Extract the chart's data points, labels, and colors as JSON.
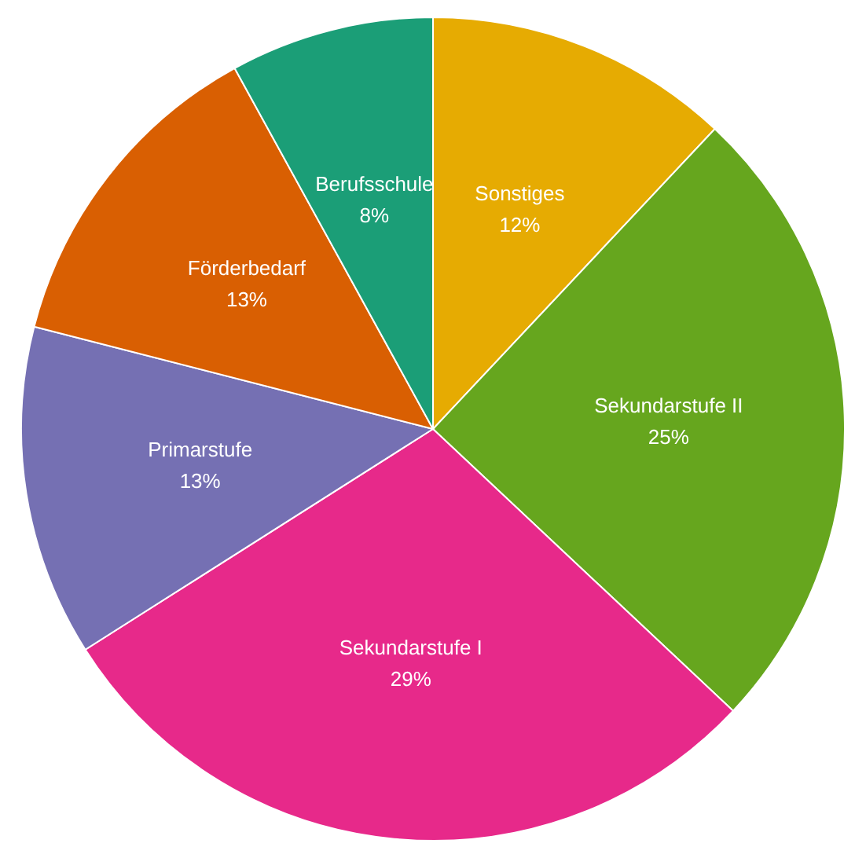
{
  "chart_data": {
    "type": "pie",
    "categories": [
      "Sonstiges",
      "Sekundarstufe II",
      "Sekundarstufe I",
      "Primarstufe",
      "Förderbedarf",
      "Berufsschule"
    ],
    "values": [
      12,
      25,
      29,
      13,
      13,
      8
    ],
    "value_labels": [
      "12%",
      "25%",
      "29%",
      "13%",
      "13%",
      "8%"
    ],
    "colors": [
      "#e6ab02",
      "#66a61e",
      "#e7298a",
      "#7570b3",
      "#d95f02",
      "#1b9e77"
    ]
  }
}
